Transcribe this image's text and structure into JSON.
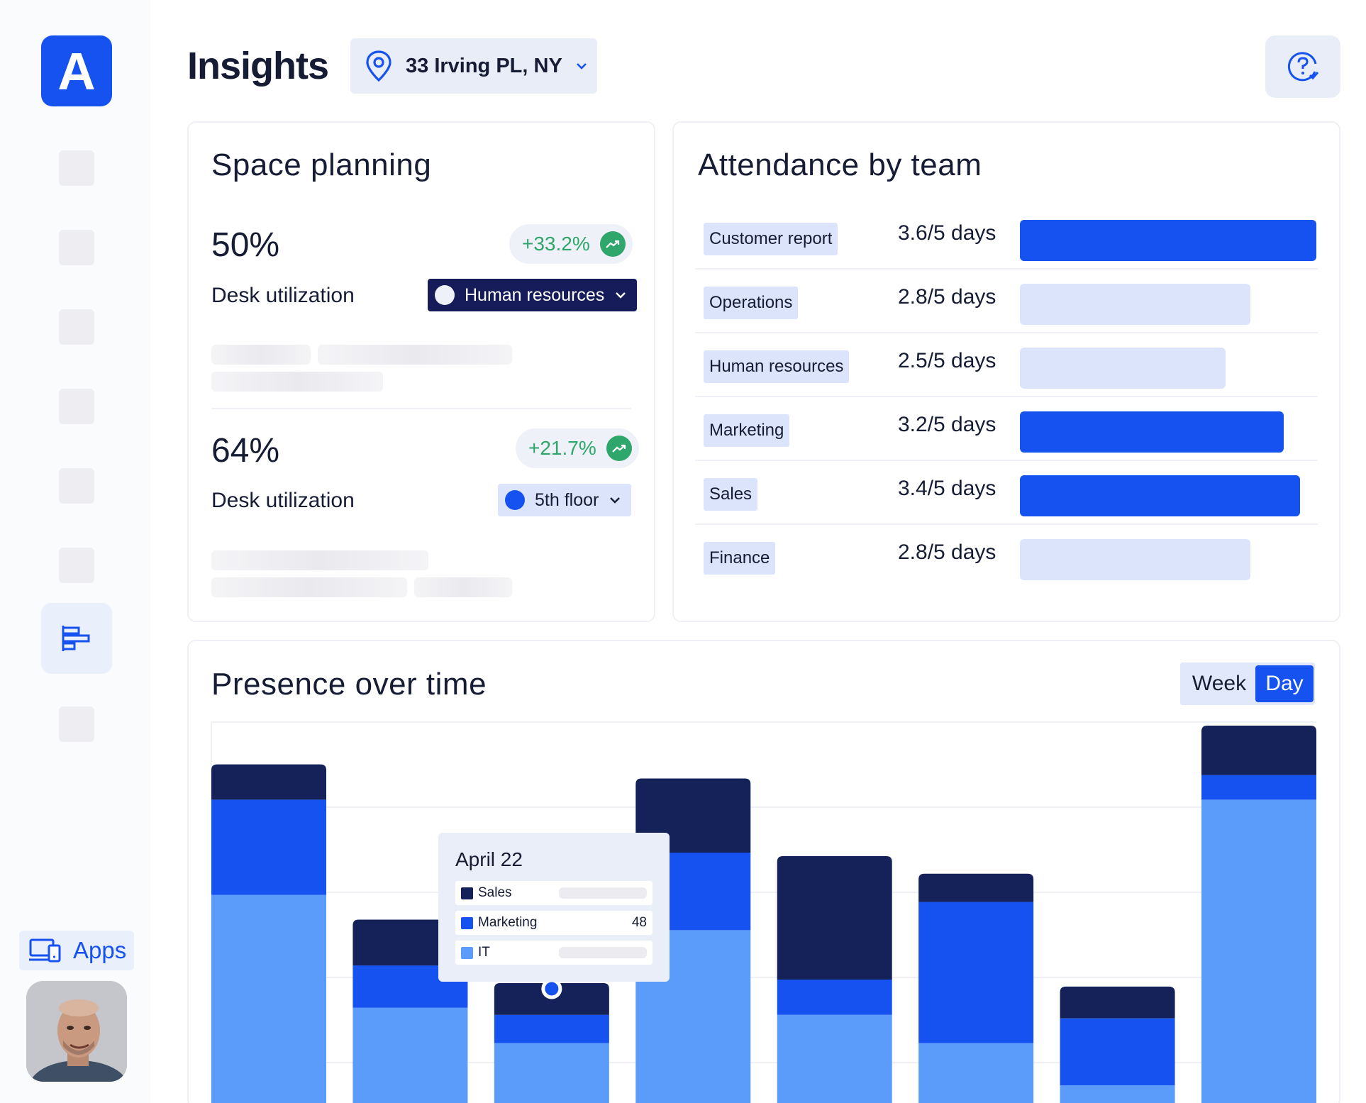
{
  "app": {
    "logo_letter": "A",
    "page_title": "Insights"
  },
  "location": {
    "label": "33 Irving PL, NY"
  },
  "sidebar": {
    "apps_label": "Apps"
  },
  "space_planning": {
    "title": "Space planning",
    "metrics": [
      {
        "value": "50%",
        "change": "+33.2%",
        "label": "Desk utilization",
        "filter": "Human resources"
      },
      {
        "value": "64%",
        "change": "+21.7%",
        "label": "Desk utilization",
        "filter": "5th floor"
      }
    ]
  },
  "attendance": {
    "title": "Attendance by team",
    "teams": [
      {
        "name": "Customer report",
        "days": "3.6/5 days",
        "value": 3.6
      },
      {
        "name": "Operations",
        "days": "2.8/5 days",
        "value": 2.8
      },
      {
        "name": "Human resources",
        "days": "2.5/5 days",
        "value": 2.5
      },
      {
        "name": "Marketing",
        "days": "3.2/5 days",
        "value": 3.2
      },
      {
        "name": "Sales",
        "days": "3.4/5 days",
        "value": 3.4
      },
      {
        "name": "Finance",
        "days": "2.8/5 days",
        "value": 2.8
      }
    ],
    "colors": {
      "high": "#1652f0",
      "low": "#dbe4fb"
    }
  },
  "presence": {
    "title": "Presence over time",
    "toggle": {
      "week": "Week",
      "day": "Day",
      "active": "Day"
    },
    "tooltip": {
      "date": "April 22",
      "rows": [
        {
          "label": "Sales",
          "value": ""
        },
        {
          "label": "Marketing",
          "value": "48"
        },
        {
          "label": "IT",
          "value": ""
        }
      ]
    }
  },
  "chart_data": {
    "type": "bar",
    "stacked": true,
    "title": "Presence over time",
    "categories": [
      "",
      "",
      "",
      "",
      "",
      "",
      "",
      ""
    ],
    "series": [
      {
        "name": "IT",
        "color": "#5b9cfb",
        "values": [
          59,
          27,
          17,
          49,
          25,
          17,
          5,
          86
        ]
      },
      {
        "name": "Marketing",
        "color": "#1652f0",
        "values": [
          27,
          12,
          8,
          22,
          10,
          40,
          19,
          7
        ]
      },
      {
        "name": "Sales",
        "color": "#15225a",
        "values": [
          10,
          13,
          9,
          21,
          35,
          8,
          9,
          14
        ]
      }
    ],
    "ylim": [
      0,
      108
    ],
    "grid": true
  }
}
